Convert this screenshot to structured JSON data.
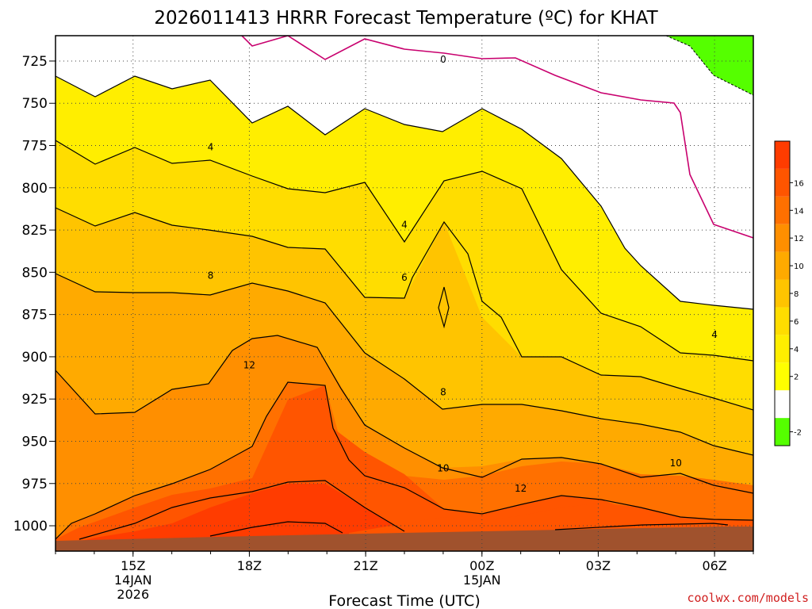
{
  "chart_data": {
    "type": "heatmap",
    "title": "2026011413 HRRR Forecast Temperature (ºC) for KHAT",
    "xlabel": "Forecast Time (UTC)",
    "ylabel": "",
    "x_ticks": [
      {
        "label": "15Z",
        "sub": [
          "14JAN",
          "2026"
        ]
      },
      {
        "label": "18Z",
        "sub": []
      },
      {
        "label": "21Z",
        "sub": []
      },
      {
        "label": "00Z",
        "sub": [
          "15JAN"
        ]
      },
      {
        "label": "03Z",
        "sub": []
      },
      {
        "label": "06Z",
        "sub": []
      }
    ],
    "y_ticks": [
      "725",
      "750",
      "775",
      "800",
      "825",
      "850",
      "875",
      "900",
      "925",
      "950",
      "975",
      "1000"
    ],
    "ylim": [
      1015,
      710
    ],
    "xlim": [
      13,
      31
    ],
    "grid": true,
    "colorbar": {
      "levels": [
        -2,
        0,
        2,
        4,
        6,
        8,
        10,
        12,
        14,
        16,
        18
      ],
      "labels": [
        "-2",
        "2",
        "4",
        "6",
        "8",
        "10",
        "12",
        "14",
        "16"
      ],
      "colors": [
        "#55ff00",
        "#ffffff",
        "#ffff00",
        "#ffee00",
        "#ffdd00",
        "#ffc400",
        "#ffaa00",
        "#ff8f00",
        "#ff7000",
        "#ff5500",
        "#ff3c00"
      ],
      "placement": "right"
    },
    "contour_labels": [
      {
        "text": "0",
        "x": 23.0,
        "p": 724
      },
      {
        "text": "4",
        "x": 17.0,
        "p": 776
      },
      {
        "text": "4",
        "x": 22.0,
        "p": 822
      },
      {
        "text": "4",
        "x": 30.0,
        "p": 887
      },
      {
        "text": "6",
        "x": 22.0,
        "p": 853
      },
      {
        "text": "8",
        "x": 17.0,
        "p": 852
      },
      {
        "text": "8",
        "x": 23.0,
        "p": 921
      },
      {
        "text": "10",
        "x": 23.0,
        "p": 966
      },
      {
        "text": "10",
        "x": 29.0,
        "p": 963
      },
      {
        "text": "12",
        "x": 18.0,
        "p": 905
      },
      {
        "text": "12",
        "x": 25.0,
        "p": 978
      }
    ]
  },
  "credit": "coolwx.com/models"
}
